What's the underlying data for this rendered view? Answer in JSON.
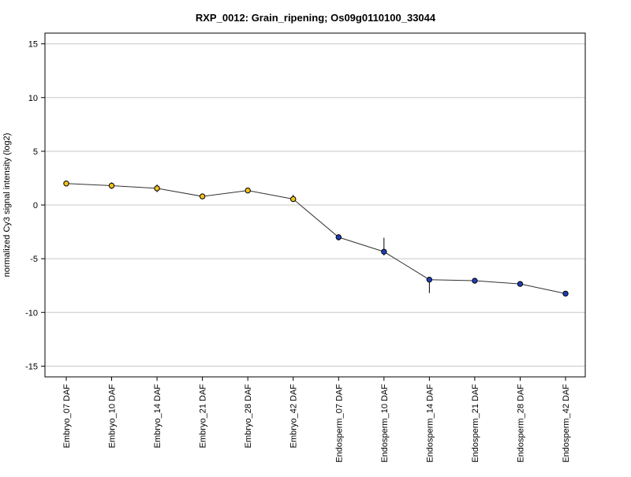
{
  "chart_data": {
    "type": "line",
    "title": "RXP_0012: Grain_ripening; Os09g0110100_33044",
    "ylabel": "normalized Cy3 signal intensity (log2)",
    "xlabel": "",
    "ylim": [
      -16,
      16
    ],
    "yticks": [
      -15,
      -10,
      -5,
      0,
      5,
      10,
      15
    ],
    "grid": true,
    "categories": [
      "Embryo_07 DAF",
      "Embryo_10 DAF",
      "Embryo_14 DAF",
      "Embryo_21 DAF",
      "Embryo_28 DAF",
      "Embryo_42 DAF",
      "Endosperm_07 DAF",
      "Endosperm_10 DAF",
      "Endosperm_14 DAF",
      "Endosperm_21 DAF",
      "Endosperm_28 DAF",
      "Endosperm_42 DAF"
    ],
    "series": [
      {
        "values": [
          2.0,
          1.8,
          1.55,
          0.8,
          1.35,
          0.55,
          -3.0,
          -4.35,
          -6.95,
          -7.05,
          -7.35,
          -8.25
        ],
        "err_low": [
          1.9,
          1.5,
          1.2,
          0.7,
          1.2,
          0.3,
          -3.3,
          -4.7,
          -8.2,
          -7.15,
          -7.55,
          -8.35
        ],
        "err_high": [
          2.1,
          2.1,
          1.9,
          0.95,
          1.45,
          0.95,
          -2.75,
          -3.05,
          -6.7,
          -6.95,
          -7.2,
          -8.15
        ],
        "point_colors": [
          "#f2c21b",
          "#f2c21b",
          "#f2c21b",
          "#f2c21b",
          "#f2c21b",
          "#f2c21b",
          "#1f3fb8",
          "#1f3fb8",
          "#1f3fb8",
          "#1f3fb8",
          "#1f3fb8",
          "#1f3fb8"
        ],
        "line_color": "#333333"
      }
    ]
  }
}
